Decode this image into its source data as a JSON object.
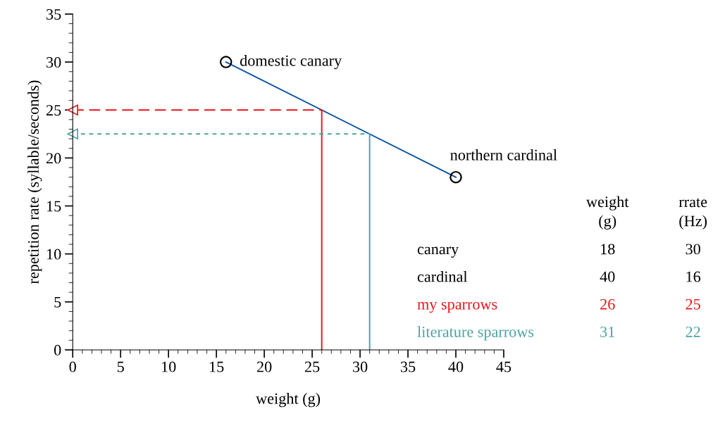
{
  "chart_data": {
    "type": "line",
    "xlabel": "weight (g)",
    "ylabel": "repetition rate (syllable/seconds)",
    "xlim": [
      0,
      45
    ],
    "xticks": [
      0,
      5,
      10,
      15,
      20,
      25,
      30,
      35,
      40,
      45
    ],
    "ylim": [
      0,
      35
    ],
    "yticks": [
      0,
      5,
      10,
      15,
      20,
      25,
      30,
      35
    ],
    "grid": false,
    "series": [
      {
        "x": [
          16,
          40
        ],
        "values": [
          30,
          18
        ],
        "color": "#0b4f9f",
        "marker": "circle",
        "line_style": "solid"
      },
      {
        "x": [
          26,
          26
        ],
        "values": [
          0,
          25
        ],
        "color": "#e8141c",
        "line_style": "solid"
      },
      {
        "x": [
          0,
          26
        ],
        "values": [
          25,
          25
        ],
        "color": "#e8141c",
        "line_style": "dashed",
        "marker": "triangle"
      },
      {
        "x": [
          31,
          31
        ],
        "values": [
          0,
          22.5
        ],
        "color": "#4aa3a3",
        "line_style": "solid"
      },
      {
        "x": [
          0,
          31
        ],
        "values": [
          22.5,
          22.5
        ],
        "color": "#4aa3a3",
        "line_style": "dotted",
        "marker": "triangle"
      }
    ],
    "annotations": [
      {
        "text": "domestic canary",
        "x": 16,
        "y": 30
      },
      {
        "text": "northern cardinal",
        "x": 40,
        "y": 18
      },
      "weight\n(g)",
      "rrate\n(Hz)",
      "canary",
      "18",
      "30",
      "cardinal",
      "40",
      "16",
      "my sparrows",
      "26",
      "25",
      "literature sparrows",
      "31",
      "22"
    ]
  }
}
